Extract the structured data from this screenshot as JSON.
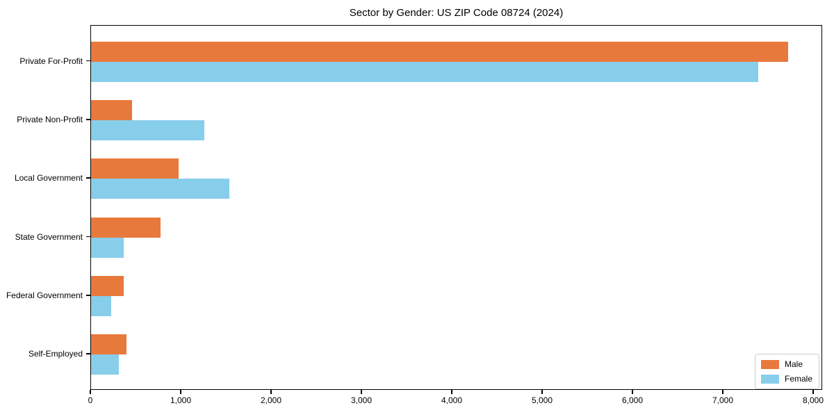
{
  "chart_data": {
    "type": "bar",
    "orientation": "horizontal",
    "title": "Sector by Gender: US ZIP Code 08724 (2024)",
    "categories": [
      "Private For-Profit",
      "Private Non-Profit",
      "Local Government",
      "State Government",
      "Federal Government",
      "Self-Employed"
    ],
    "series": [
      {
        "name": "Male",
        "color": "#e8793d",
        "values": [
          7715,
          455,
          970,
          770,
          365,
          390
        ]
      },
      {
        "name": "Female",
        "color": "#87ceeb",
        "values": [
          7385,
          1255,
          1530,
          360,
          220,
          310
        ]
      }
    ],
    "xlabel": "",
    "ylabel": "",
    "xlim": [
      0,
      8100
    ],
    "xticks": [
      0,
      1000,
      2000,
      3000,
      4000,
      5000,
      6000,
      7000,
      8000
    ],
    "xtick_labels": [
      "0",
      "1,000",
      "2,000",
      "3,000",
      "4,000",
      "5,000",
      "6,000",
      "7,000",
      "8,000"
    ],
    "grid": false,
    "legend": {
      "position": "lower right"
    },
    "colors": {
      "axis": "#000000",
      "text": "#000000",
      "background": "#ffffff",
      "legend_border": "#cccccc"
    }
  }
}
